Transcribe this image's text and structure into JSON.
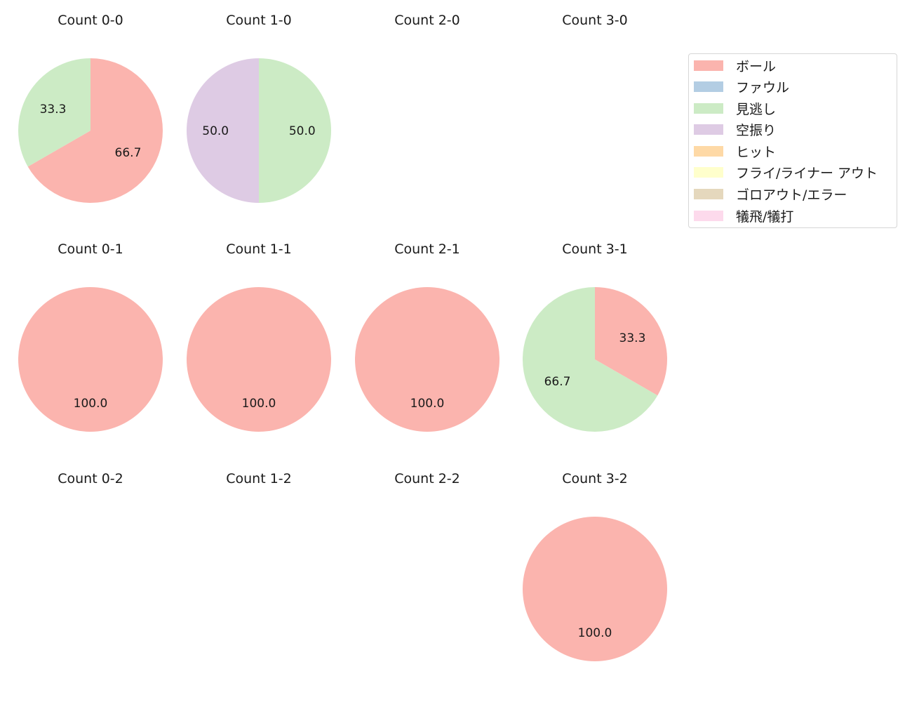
{
  "chart_data": {
    "type": "pie",
    "layout": {
      "rows": 3,
      "cols": 4,
      "startangle": 90,
      "direction": "clockwise",
      "label_format": "%.1f",
      "legend_position": "upper right"
    },
    "categories": [
      "ボール",
      "ファウル",
      "見逃し",
      "空振り",
      "ヒット",
      "フライ/ライナー アウト",
      "ゴロアウト/エラー",
      "犠飛/犠打"
    ],
    "colors": [
      "#fbb4ae",
      "#b3cde3",
      "#ccebc5",
      "#decbe4",
      "#fed9a6",
      "#ffffcc",
      "#e5d8bd",
      "#fddaec"
    ],
    "subplots": [
      {
        "title": "Count 0-0",
        "row": 0,
        "col": 0,
        "slices": [
          {
            "category": "ボール",
            "value": 66.7
          },
          {
            "category": "見逃し",
            "value": 33.3
          }
        ]
      },
      {
        "title": "Count 1-0",
        "row": 0,
        "col": 1,
        "slices": [
          {
            "category": "見逃し",
            "value": 50.0
          },
          {
            "category": "空振り",
            "value": 50.0
          }
        ]
      },
      {
        "title": "Count 2-0",
        "row": 0,
        "col": 2,
        "slices": []
      },
      {
        "title": "Count 3-0",
        "row": 0,
        "col": 3,
        "slices": []
      },
      {
        "title": "Count 0-1",
        "row": 1,
        "col": 0,
        "slices": [
          {
            "category": "ボール",
            "value": 100.0
          }
        ]
      },
      {
        "title": "Count 1-1",
        "row": 1,
        "col": 1,
        "slices": [
          {
            "category": "ボール",
            "value": 100.0
          }
        ]
      },
      {
        "title": "Count 2-1",
        "row": 1,
        "col": 2,
        "slices": [
          {
            "category": "ボール",
            "value": 100.0
          }
        ]
      },
      {
        "title": "Count 3-1",
        "row": 1,
        "col": 3,
        "slices": [
          {
            "category": "ボール",
            "value": 33.3
          },
          {
            "category": "見逃し",
            "value": 66.7
          }
        ]
      },
      {
        "title": "Count 0-2",
        "row": 2,
        "col": 0,
        "slices": []
      },
      {
        "title": "Count 1-2",
        "row": 2,
        "col": 1,
        "slices": []
      },
      {
        "title": "Count 2-2",
        "row": 2,
        "col": 2,
        "slices": []
      },
      {
        "title": "Count 3-2",
        "row": 2,
        "col": 3,
        "slices": [
          {
            "category": "ボール",
            "value": 100.0
          }
        ]
      }
    ]
  },
  "legend": {
    "items": [
      {
        "label": "ボール",
        "color": "#fbb4ae"
      },
      {
        "label": "ファウル",
        "color": "#b3cde3"
      },
      {
        "label": "見逃し",
        "color": "#ccebc5"
      },
      {
        "label": "空振り",
        "color": "#decbe4"
      },
      {
        "label": "ヒット",
        "color": "#fed9a6"
      },
      {
        "label": "フライ/ライナー アウト",
        "color": "#ffffcc"
      },
      {
        "label": "ゴロアウト/エラー",
        "color": "#e5d8bd"
      },
      {
        "label": "犠飛/犠打",
        "color": "#fddaec"
      }
    ]
  }
}
